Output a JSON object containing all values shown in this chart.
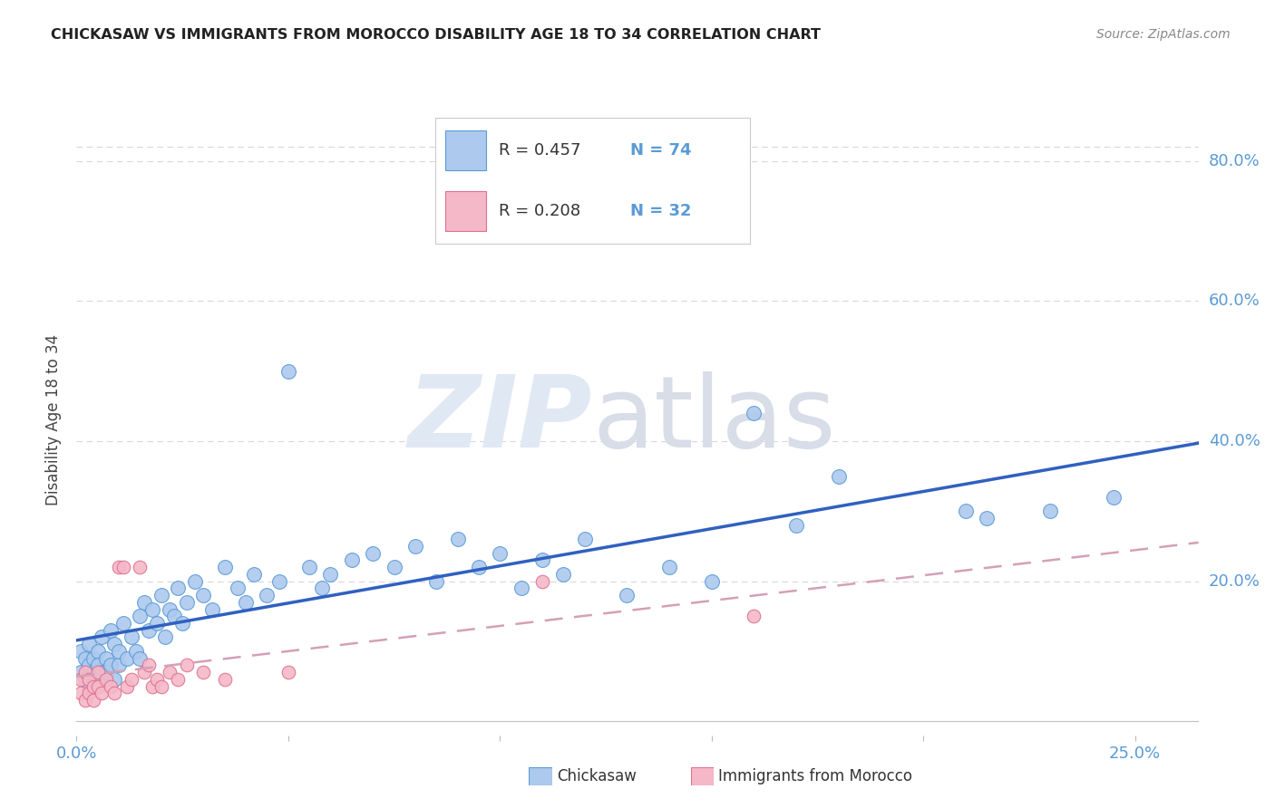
{
  "title": "CHICKASAW VS IMMIGRANTS FROM MOROCCO DISABILITY AGE 18 TO 34 CORRELATION CHART",
  "source": "Source: ZipAtlas.com",
  "ylabel": "Disability Age 18 to 34",
  "xlim": [
    0.0,
    0.265
  ],
  "ylim": [
    -0.02,
    0.88
  ],
  "xtick_positions": [
    0.0,
    0.05,
    0.1,
    0.15,
    0.2,
    0.25
  ],
  "xtick_labels": [
    "0.0%",
    "",
    "",
    "",
    "",
    "25.0%"
  ],
  "ytick_positions": [
    0.0,
    0.2,
    0.4,
    0.6,
    0.8
  ],
  "ytick_labels": [
    "",
    "20.0%",
    "40.0%",
    "60.0%",
    "80.0%"
  ],
  "legend_R1": "R = 0.457",
  "legend_N1": "N = 74",
  "legend_R2": "R = 0.208",
  "legend_N2": "N = 32",
  "color_chickasaw_fill": "#adc9ee",
  "color_chickasaw_edge": "#5b9bd5",
  "color_morocco_fill": "#f5b8c8",
  "color_morocco_edge": "#e07090",
  "color_line1": "#3060c0",
  "color_line2": "#e06080",
  "color_line2_dash": "#d4a0b5",
  "watermark_zip_color": "#e0e8f4",
  "watermark_atlas_color": "#d8dde8",
  "grid_color": "#d8d8d8",
  "title_color": "#222222",
  "source_color": "#888888",
  "ylabel_color": "#444444",
  "tick_label_color": "#5b9bd5",
  "bottom_legend_color": "#333333"
}
